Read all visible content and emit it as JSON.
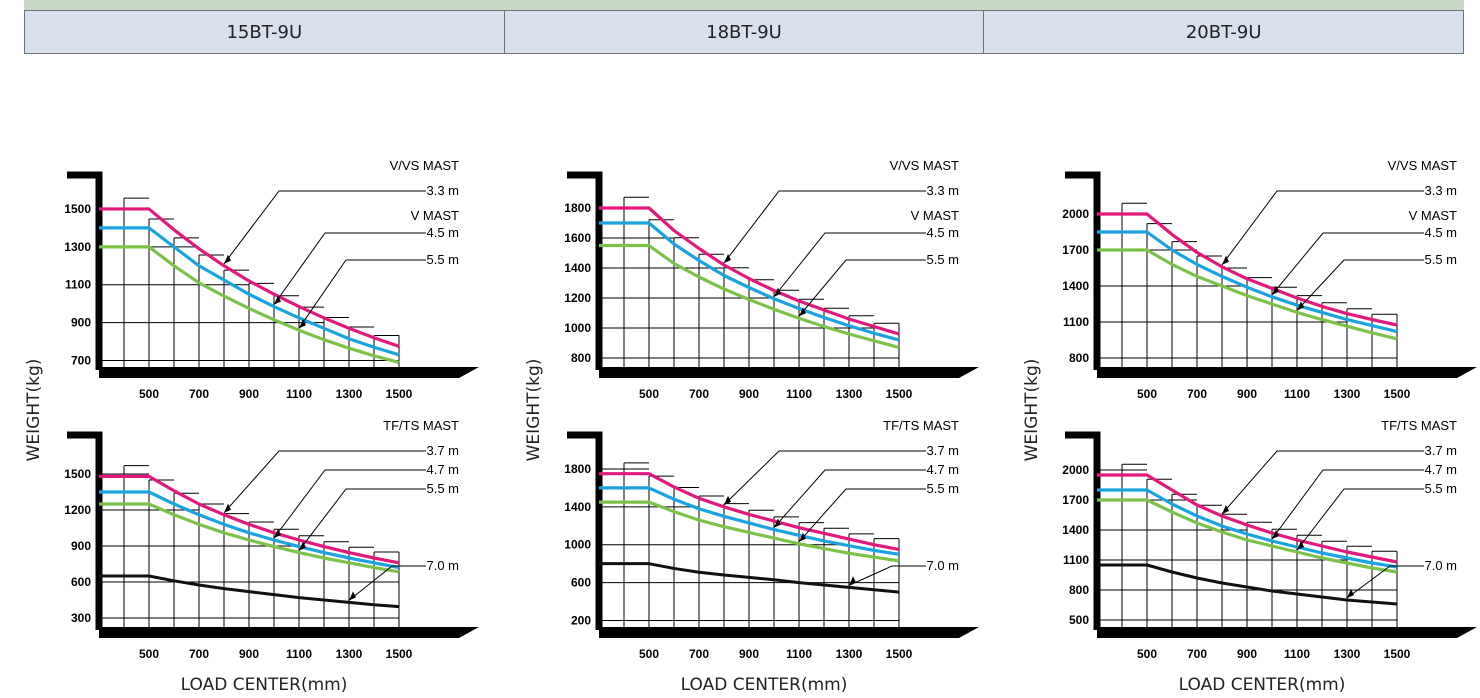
{
  "models": [
    "15BT-9U",
    "18BT-9U",
    "20BT-9U"
  ],
  "common": {
    "ylabel": "WEIGHT(kg)",
    "xlabel": "LOAD CENTER(mm)"
  },
  "colors": {
    "magenta": "#e2197c",
    "cyan": "#1aa3e0",
    "green": "#7cc24a",
    "black": "#111111",
    "header_bg": "#d7e0ec",
    "top_band": "#c9d8c5"
  },
  "chart_data": [
    {
      "type": "line",
      "model": "15BT-9U",
      "mast_title": "V/VS MAST",
      "mast_title2": "V  MAST",
      "x_ticks": [
        "500",
        "700",
        "900",
        "1100",
        "1300",
        "1500"
      ],
      "y_ticks": [
        "700",
        "900",
        "1100",
        "1300",
        "1500"
      ],
      "xlim": [
        300,
        1600
      ],
      "ylim": [
        650,
        1600
      ],
      "series": [
        {
          "name": "3.3 m",
          "color": "magenta",
          "x": [
            300,
            500,
            600,
            700,
            800,
            900,
            1000,
            1100,
            1200,
            1300,
            1400,
            1500
          ],
          "y": [
            1500,
            1500,
            1390,
            1290,
            1200,
            1120,
            1050,
            985,
            925,
            870,
            820,
            775
          ]
        },
        {
          "name": "4.5 m",
          "color": "cyan",
          "x": [
            300,
            500,
            600,
            700,
            800,
            900,
            1000,
            1100,
            1200,
            1300,
            1400,
            1500
          ],
          "y": [
            1400,
            1400,
            1300,
            1200,
            1125,
            1050,
            985,
            925,
            870,
            815,
            770,
            730
          ]
        },
        {
          "name": "5.5 m",
          "color": "green",
          "x": [
            300,
            500,
            600,
            700,
            800,
            900,
            1000,
            1100,
            1200,
            1300,
            1400,
            1500
          ],
          "y": [
            1300,
            1300,
            1200,
            1110,
            1040,
            975,
            915,
            860,
            810,
            765,
            725,
            690
          ]
        }
      ]
    },
    {
      "type": "line",
      "model": "18BT-9U",
      "mast_title": "V/VS MAST",
      "mast_title2": "V  MAST",
      "x_ticks": [
        "500",
        "700",
        "900",
        "1100",
        "1300",
        "1500"
      ],
      "y_ticks": [
        "800",
        "1000",
        "1200",
        "1400",
        "1600",
        "1800"
      ],
      "xlim": [
        300,
        1600
      ],
      "ylim": [
        720,
        1920
      ],
      "series": [
        {
          "name": "3.3 m",
          "color": "magenta",
          "x": [
            300,
            500,
            600,
            700,
            800,
            900,
            1000,
            1100,
            1200,
            1300,
            1400,
            1500
          ],
          "y": [
            1800,
            1800,
            1650,
            1530,
            1420,
            1330,
            1250,
            1180,
            1120,
            1060,
            1010,
            960
          ]
        },
        {
          "name": "4.5 m",
          "color": "cyan",
          "x": [
            300,
            500,
            600,
            700,
            800,
            900,
            1000,
            1100,
            1200,
            1300,
            1400,
            1500
          ],
          "y": [
            1700,
            1700,
            1560,
            1450,
            1350,
            1270,
            1195,
            1130,
            1070,
            1015,
            965,
            920
          ]
        },
        {
          "name": "5.5 m",
          "color": "green",
          "x": [
            300,
            500,
            600,
            700,
            800,
            900,
            1000,
            1100,
            1200,
            1300,
            1400,
            1500
          ],
          "y": [
            1550,
            1550,
            1430,
            1340,
            1260,
            1190,
            1125,
            1065,
            1010,
            960,
            915,
            870
          ]
        }
      ]
    },
    {
      "type": "line",
      "model": "20BT-9U",
      "mast_title": "V/VS MAST",
      "mast_title2": "V  MAST",
      "x_ticks": [
        "500",
        "700",
        "900",
        "1100",
        "1300",
        "1500"
      ],
      "y_ticks": [
        "800",
        "1100",
        "1400",
        "1700",
        "2000"
      ],
      "xlim": [
        300,
        1600
      ],
      "ylim": [
        700,
        2200
      ],
      "series": [
        {
          "name": "3.3 m",
          "color": "magenta",
          "x": [
            300,
            500,
            600,
            700,
            800,
            900,
            1000,
            1100,
            1200,
            1300,
            1400,
            1500
          ],
          "y": [
            2000,
            2000,
            1830,
            1680,
            1560,
            1460,
            1380,
            1300,
            1230,
            1170,
            1120,
            1075
          ]
        },
        {
          "name": "4.5 m",
          "color": "cyan",
          "x": [
            300,
            500,
            600,
            700,
            800,
            900,
            1000,
            1100,
            1200,
            1300,
            1400,
            1500
          ],
          "y": [
            1850,
            1850,
            1700,
            1580,
            1480,
            1390,
            1310,
            1240,
            1180,
            1120,
            1070,
            1020
          ]
        },
        {
          "name": "5.5 m",
          "color": "green",
          "x": [
            300,
            500,
            600,
            700,
            800,
            900,
            1000,
            1100,
            1200,
            1300,
            1400,
            1500
          ],
          "y": [
            1700,
            1700,
            1580,
            1480,
            1400,
            1320,
            1250,
            1180,
            1120,
            1065,
            1010,
            960
          ]
        }
      ]
    },
    {
      "type": "line",
      "model": "15BT-9U",
      "mast_title": "TF/TS  MAST",
      "x_ticks": [
        "500",
        "700",
        "900",
        "1100",
        "1300",
        "1500"
      ],
      "y_ticks": [
        "300",
        "600",
        "900",
        "1200",
        "1500"
      ],
      "xlim": [
        300,
        1600
      ],
      "ylim": [
        200,
        1700
      ],
      "series": [
        {
          "name": "3.7 m",
          "color": "magenta",
          "x": [
            300,
            500,
            600,
            700,
            800,
            900,
            1000,
            1100,
            1200,
            1300,
            1400,
            1500
          ],
          "y": [
            1480,
            1480,
            1360,
            1250,
            1160,
            1080,
            1010,
            950,
            895,
            845,
            800,
            760
          ]
        },
        {
          "name": "4.7 m",
          "color": "cyan",
          "x": [
            300,
            500,
            600,
            700,
            800,
            900,
            1000,
            1100,
            1200,
            1300,
            1400,
            1500
          ],
          "y": [
            1350,
            1350,
            1250,
            1160,
            1080,
            1010,
            950,
            895,
            845,
            800,
            760,
            720
          ]
        },
        {
          "name": "5.5 m",
          "color": "green",
          "x": [
            300,
            500,
            600,
            700,
            800,
            900,
            1000,
            1100,
            1200,
            1300,
            1400,
            1500
          ],
          "y": [
            1250,
            1250,
            1160,
            1080,
            1010,
            950,
            895,
            845,
            800,
            760,
            720,
            685
          ]
        },
        {
          "name": "7.0 m",
          "color": "black",
          "x": [
            300,
            500,
            600,
            700,
            800,
            900,
            1000,
            1100,
            1200,
            1300,
            1400,
            1500
          ],
          "y": [
            650,
            650,
            610,
            575,
            545,
            520,
            495,
            470,
            450,
            430,
            410,
            395
          ]
        }
      ]
    },
    {
      "type": "line",
      "model": "18BT-9U",
      "mast_title": "TF/TS  MAST",
      "x_ticks": [
        "500",
        "700",
        "900",
        "1100",
        "1300",
        "1500"
      ],
      "y_ticks": [
        "200",
        "600",
        "1000",
        "1400",
        "1800"
      ],
      "xlim": [
        300,
        1600
      ],
      "ylim": [
        100,
        2000
      ],
      "series": [
        {
          "name": "3.7 m",
          "color": "magenta",
          "x": [
            300,
            500,
            600,
            700,
            800,
            900,
            1000,
            1100,
            1200,
            1300,
            1400,
            1500
          ],
          "y": [
            1750,
            1750,
            1610,
            1490,
            1400,
            1320,
            1250,
            1180,
            1120,
            1060,
            1000,
            950
          ]
        },
        {
          "name": "4.7 m",
          "color": "cyan",
          "x": [
            300,
            500,
            600,
            700,
            800,
            900,
            1000,
            1100,
            1200,
            1300,
            1400,
            1500
          ],
          "y": [
            1600,
            1600,
            1480,
            1380,
            1300,
            1230,
            1160,
            1100,
            1040,
            990,
            940,
            900
          ]
        },
        {
          "name": "5.5 m",
          "color": "green",
          "x": [
            300,
            500,
            600,
            700,
            800,
            900,
            1000,
            1100,
            1200,
            1300,
            1400,
            1500
          ],
          "y": [
            1450,
            1450,
            1350,
            1260,
            1190,
            1130,
            1070,
            1010,
            960,
            910,
            870,
            830
          ]
        },
        {
          "name": "7.0 m",
          "color": "black",
          "x": [
            300,
            500,
            600,
            700,
            800,
            900,
            1000,
            1100,
            1200,
            1300,
            1400,
            1500
          ],
          "y": [
            800,
            800,
            750,
            710,
            680,
            655,
            630,
            600,
            575,
            550,
            525,
            500
          ]
        }
      ]
    },
    {
      "type": "line",
      "model": "20BT-9U",
      "mast_title": "TF/TS  MAST",
      "x_ticks": [
        "500",
        "700",
        "900",
        "1100",
        "1300",
        "1500"
      ],
      "y_ticks": [
        "500",
        "800",
        "1100",
        "1400",
        "1700",
        "2000"
      ],
      "xlim": [
        300,
        1600
      ],
      "ylim": [
        400,
        2200
      ],
      "series": [
        {
          "name": "3.7 m",
          "color": "magenta",
          "x": [
            300,
            500,
            600,
            700,
            800,
            900,
            1000,
            1100,
            1200,
            1300,
            1400,
            1500
          ],
          "y": [
            1950,
            1950,
            1800,
            1650,
            1540,
            1450,
            1370,
            1300,
            1240,
            1180,
            1130,
            1080
          ]
        },
        {
          "name": "4.7 m",
          "color": "cyan",
          "x": [
            300,
            500,
            600,
            700,
            800,
            900,
            1000,
            1100,
            1200,
            1300,
            1400,
            1500
          ],
          "y": [
            1800,
            1800,
            1660,
            1540,
            1440,
            1360,
            1290,
            1230,
            1170,
            1120,
            1070,
            1030
          ]
        },
        {
          "name": "5.5 m",
          "color": "green",
          "x": [
            300,
            500,
            600,
            700,
            800,
            900,
            1000,
            1100,
            1200,
            1300,
            1400,
            1500
          ],
          "y": [
            1700,
            1700,
            1580,
            1470,
            1380,
            1300,
            1240,
            1180,
            1120,
            1070,
            1020,
            980
          ]
        },
        {
          "name": "7.0 m",
          "color": "black",
          "x": [
            300,
            500,
            600,
            700,
            800,
            900,
            1000,
            1100,
            1200,
            1300,
            1400,
            1500
          ],
          "y": [
            1050,
            1050,
            980,
            920,
            870,
            830,
            790,
            760,
            730,
            700,
            680,
            660
          ]
        }
      ]
    }
  ]
}
